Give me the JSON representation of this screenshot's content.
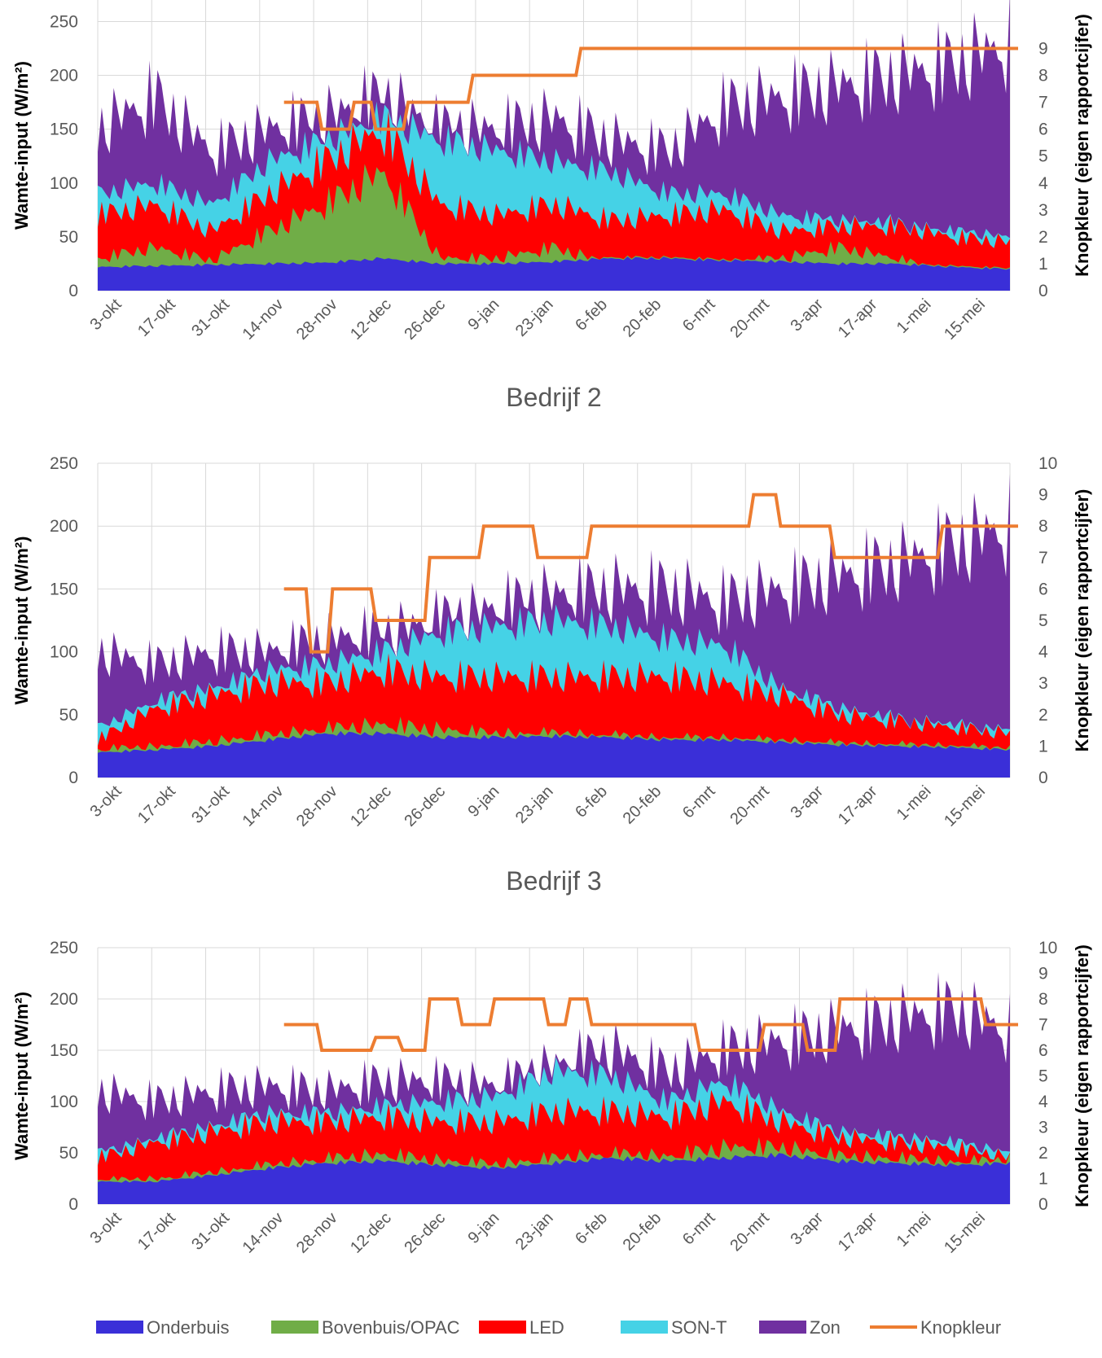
{
  "colors": {
    "Onderbuis": "#3a2fd8",
    "Bovenbuis/OPAC": "#70ad47",
    "LED": "#ff0000",
    "SON-T": "#45d2e6",
    "Zon": "#7030a0",
    "Knopkleur": "#ed7d31",
    "grid": "#d9d9d9"
  },
  "legend": [
    "Onderbuis",
    "Bovenbuis/OPAC",
    "LED",
    "SON-T",
    "Zon",
    "Knopkleur"
  ],
  "chart_data": [
    {
      "type": "area",
      "title": "",
      "ylabel": "Wamte-input (W/m²)",
      "y2label": "Knopkleur (eigen rapportcijfer)",
      "ylim": [
        0,
        250
      ],
      "y2lim": [
        0,
        10
      ],
      "yticks": [
        "0",
        "50",
        "100",
        "150",
        "200",
        "250"
      ],
      "y2ticks": [
        "0",
        "1",
        "2",
        "3",
        "4",
        "5",
        "6",
        "7",
        "8",
        "9"
      ],
      "categories": [
        "3-okt",
        "17-okt",
        "31-okt",
        "14-nov",
        "28-nov",
        "12-dec",
        "26-dec",
        "9-jan",
        "23-jan",
        "6-feb",
        "20-feb",
        "6-mrt",
        "20-mrt",
        "3-apr",
        "17-apr",
        "1-mei",
        "15-mei"
      ],
      "series": [
        {
          "name": "Onderbuis",
          "values": [
            22,
            23,
            24,
            25,
            26,
            30,
            25,
            25,
            27,
            30,
            30,
            28,
            27,
            25,
            25,
            22,
            20
          ]
        },
        {
          "name": "Bovenbuis/OPAC",
          "values": [
            30,
            40,
            28,
            55,
            80,
            110,
            30,
            30,
            40,
            25,
            15,
            25,
            30,
            40,
            30,
            15,
            10
          ]
        },
        {
          "name": "LED",
          "values": [
            70,
            80,
            55,
            90,
            120,
            150,
            80,
            70,
            80,
            65,
            70,
            75,
            55,
            60,
            60,
            50,
            45
          ]
        },
        {
          "name": "SON-T",
          "values": [
            90,
            100,
            80,
            120,
            140,
            160,
            140,
            130,
            120,
            110,
            90,
            90,
            70,
            65,
            60,
            55,
            50
          ]
        },
        {
          "name": "Zon",
          "values": [
            150,
            180,
            130,
            150,
            160,
            180,
            150,
            150,
            160,
            140,
            130,
            170,
            180,
            190,
            200,
            210,
            230
          ]
        },
        {
          "name": "Knopkleur",
          "axis": "right",
          "steps": [
            [
              3.3,
              7
            ],
            [
              4,
              6
            ],
            [
              4.6,
              7
            ],
            [
              5,
              6
            ],
            [
              5.6,
              7
            ],
            [
              6.8,
              8
            ],
            [
              8.8,
              9
            ],
            [
              16.9,
              9
            ]
          ]
        }
      ]
    },
    {
      "type": "area",
      "title": "Bedrijf 2",
      "ylabel": "Wamte-input (W/m²)",
      "y2label": "Knopkleur (eigen rapportcijfer)",
      "ylim": [
        0,
        250
      ],
      "y2lim": [
        0,
        10
      ],
      "yticks": [
        "0",
        "50",
        "100",
        "150",
        "200",
        "250"
      ],
      "y2ticks": [
        "0",
        "1",
        "2",
        "3",
        "4",
        "5",
        "6",
        "7",
        "8",
        "9",
        "10"
      ],
      "categories": [
        "3-okt",
        "17-okt",
        "31-okt",
        "14-nov",
        "28-nov",
        "12-dec",
        "26-dec",
        "9-jan",
        "23-jan",
        "6-feb",
        "20-feb",
        "6-mrt",
        "20-mrt",
        "3-apr",
        "17-apr",
        "1-mei",
        "15-mei"
      ],
      "series": [
        {
          "name": "Onderbuis",
          "values": [
            20,
            22,
            25,
            30,
            35,
            35,
            32,
            32,
            33,
            32,
            30,
            30,
            28,
            26,
            25,
            24,
            22
          ]
        },
        {
          "name": "Bovenbuis/OPAC",
          "values": [
            22,
            24,
            28,
            33,
            38,
            42,
            38,
            34,
            34,
            32,
            30,
            30,
            28,
            26,
            25,
            24,
            22
          ]
        },
        {
          "name": "LED",
          "values": [
            30,
            55,
            65,
            75,
            75,
            85,
            80,
            80,
            80,
            80,
            80,
            75,
            65,
            50,
            45,
            40,
            35
          ]
        },
        {
          "name": "SON-T",
          "values": [
            40,
            60,
            70,
            85,
            90,
            100,
            115,
            120,
            125,
            120,
            110,
            105,
            70,
            55,
            45,
            40,
            38
          ]
        },
        {
          "name": "Zon",
          "values": [
            100,
            90,
            100,
            100,
            110,
            115,
            125,
            135,
            145,
            150,
            150,
            140,
            150,
            160,
            170,
            185,
            200
          ]
        },
        {
          "name": "Knopkleur",
          "axis": "right",
          "steps": [
            [
              3.3,
              6
            ],
            [
              3.8,
              4
            ],
            [
              4.2,
              6
            ],
            [
              5,
              5
            ],
            [
              6,
              7
            ],
            [
              7,
              8
            ],
            [
              8,
              7
            ],
            [
              9,
              8
            ],
            [
              12,
              9
            ],
            [
              12.5,
              8
            ],
            [
              13.5,
              7
            ],
            [
              15.5,
              8
            ],
            [
              16.9,
              8
            ]
          ]
        }
      ]
    },
    {
      "type": "area",
      "title": "Bedrijf 3",
      "ylabel": "Wamte-input (W/m²)",
      "y2label": "Knopkleur (eigen rapportcijfer)",
      "ylim": [
        0,
        250
      ],
      "y2lim": [
        0,
        10
      ],
      "yticks": [
        "0",
        "50",
        "100",
        "150",
        "200",
        "250"
      ],
      "y2ticks": [
        "0",
        "1",
        "2",
        "3",
        "4",
        "5",
        "6",
        "7",
        "8",
        "9",
        "10"
      ],
      "categories": [
        "3-okt",
        "17-okt",
        "31-okt",
        "14-nov",
        "28-nov",
        "12-dec",
        "26-dec",
        "9-jan",
        "23-jan",
        "6-feb",
        "20-feb",
        "6-mrt",
        "20-mrt",
        "3-apr",
        "17-apr",
        "1-mei",
        "15-mei"
      ],
      "series": [
        {
          "name": "Onderbuis",
          "values": [
            22,
            22,
            28,
            35,
            40,
            42,
            38,
            35,
            40,
            45,
            42,
            45,
            48,
            42,
            40,
            38,
            40
          ]
        },
        {
          "name": "Bovenbuis/OPAC",
          "values": [
            23,
            24,
            30,
            37,
            43,
            48,
            42,
            38,
            44,
            48,
            46,
            55,
            55,
            46,
            44,
            40,
            42
          ]
        },
        {
          "name": "LED",
          "values": [
            45,
            60,
            70,
            80,
            80,
            85,
            80,
            80,
            90,
            90,
            85,
            100,
            80,
            65,
            60,
            55,
            45
          ]
        },
        {
          "name": "SON-T",
          "values": [
            50,
            62,
            75,
            88,
            88,
            95,
            100,
            105,
            130,
            125,
            100,
            120,
            90,
            70,
            65,
            60,
            50
          ]
        },
        {
          "name": "Zon",
          "values": [
            110,
            100,
            110,
            115,
            110,
            120,
            120,
            115,
            135,
            150,
            130,
            150,
            160,
            170,
            180,
            190,
            170
          ]
        },
        {
          "name": "Knopkleur",
          "axis": "right",
          "steps": [
            [
              3.3,
              7
            ],
            [
              4,
              6
            ],
            [
              5,
              6.5
            ],
            [
              5.5,
              6
            ],
            [
              6,
              8
            ],
            [
              6.6,
              7
            ],
            [
              7.2,
              8
            ],
            [
              8.2,
              7
            ],
            [
              8.6,
              8
            ],
            [
              9,
              7
            ],
            [
              11,
              6
            ],
            [
              12.2,
              7
            ],
            [
              13,
              6
            ],
            [
              13.6,
              8
            ],
            [
              16.3,
              7
            ],
            [
              16.9,
              7
            ]
          ]
        }
      ]
    }
  ]
}
